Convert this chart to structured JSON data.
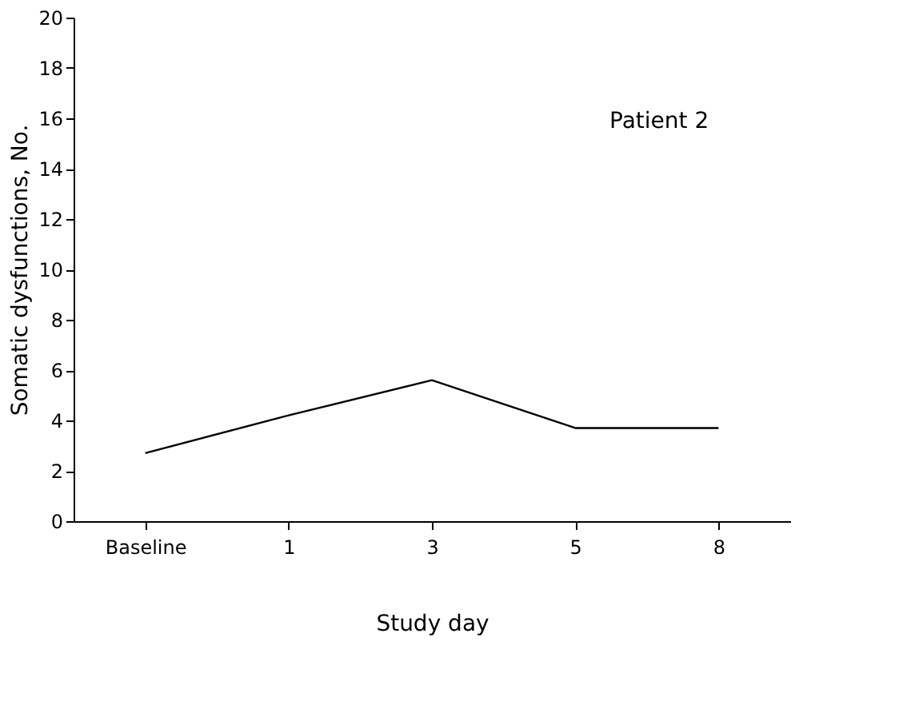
{
  "chart_data": {
    "type": "line",
    "xlabel": "Study day",
    "ylabel": "Somatic dysfunctions, No.",
    "categories": [
      "Baseline",
      "1",
      "3",
      "5",
      "8"
    ],
    "series": [
      {
        "color": "#000000",
        "values": [
          2.7,
          4.2,
          5.6,
          3.7,
          3.7
        ]
      }
    ],
    "ylim": [
      0,
      20
    ],
    "yticks": [
      0,
      2,
      4,
      6,
      8,
      10,
      12,
      14,
      16,
      18,
      20
    ],
    "annotations": [
      "Patient 2"
    ],
    "grid": false,
    "legend": false,
    "marker": "none",
    "line_style": "solid"
  }
}
